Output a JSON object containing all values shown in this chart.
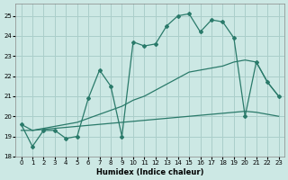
{
  "xlabel": "Humidex (Indice chaleur)",
  "ylabel": "",
  "xlim": [
    -0.5,
    23.5
  ],
  "ylim": [
    18,
    25.6
  ],
  "yticks": [
    18,
    19,
    20,
    21,
    22,
    23,
    24,
    25
  ],
  "xticks": [
    0,
    1,
    2,
    3,
    4,
    5,
    6,
    7,
    8,
    9,
    10,
    11,
    12,
    13,
    14,
    15,
    16,
    17,
    18,
    19,
    20,
    21,
    22,
    23
  ],
  "background_color": "#cce8e4",
  "grid_color": "#aaceca",
  "line_color": "#2a7a6a",
  "line1_x": [
    0,
    1,
    2,
    3,
    4,
    5,
    6,
    7,
    8,
    9,
    10,
    11,
    12,
    13,
    14,
    15,
    16,
    17,
    18,
    19,
    20,
    21,
    22,
    23
  ],
  "line1_y": [
    19.6,
    18.5,
    19.3,
    19.3,
    18.9,
    19.0,
    20.9,
    22.3,
    21.5,
    19.0,
    23.7,
    23.5,
    23.6,
    24.5,
    25.0,
    25.1,
    24.2,
    24.8,
    24.7,
    23.9,
    20.0,
    22.7,
    21.7,
    21.0
  ],
  "line2_x": [
    0,
    1,
    2,
    3,
    4,
    5,
    6,
    7,
    8,
    9,
    10,
    11,
    12,
    13,
    14,
    15,
    16,
    17,
    18,
    19,
    20,
    21,
    22,
    23
  ],
  "line2_y": [
    19.6,
    19.3,
    19.4,
    19.5,
    19.6,
    19.7,
    19.9,
    20.1,
    20.3,
    20.5,
    20.8,
    21.0,
    21.3,
    21.6,
    21.9,
    22.2,
    22.3,
    22.4,
    22.5,
    22.7,
    22.8,
    22.7,
    21.7,
    21.0
  ],
  "line3_x": [
    0,
    1,
    2,
    3,
    4,
    5,
    6,
    7,
    8,
    9,
    10,
    11,
    12,
    13,
    14,
    15,
    16,
    17,
    18,
    19,
    20,
    21,
    22,
    23
  ],
  "line3_y": [
    19.3,
    19.3,
    19.35,
    19.4,
    19.45,
    19.5,
    19.55,
    19.6,
    19.65,
    19.7,
    19.75,
    19.8,
    19.85,
    19.9,
    19.95,
    20.0,
    20.05,
    20.1,
    20.15,
    20.2,
    20.25,
    20.2,
    20.1,
    20.0
  ]
}
